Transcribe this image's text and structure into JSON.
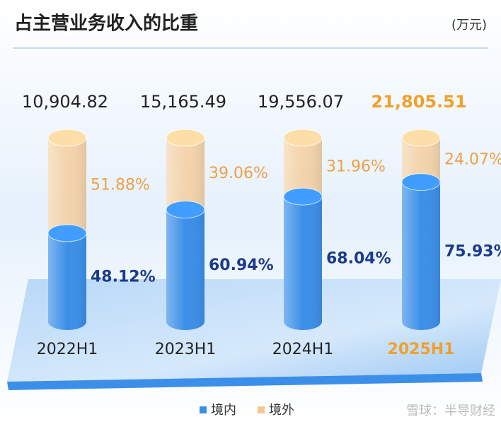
{
  "chart_data": {
    "type": "bar",
    "stacked": true,
    "title": "占主营业务收入的比重",
    "unit": "(万元)",
    "categories": [
      "2022H1",
      "2023H1",
      "2024H1",
      "2025H1"
    ],
    "totals": {
      "values": [
        10904.82,
        15165.49,
        19556.07,
        21805.51
      ],
      "value_labels": [
        "10,904.82",
        "15,165.49",
        "19,556.07",
        "21,805.51"
      ]
    },
    "highlight_index": 3,
    "highlight_color": "#f0a02c",
    "series": [
      {
        "name": "境内",
        "color": "#3b8fe8",
        "label_color": "#1c3a8c",
        "values": [
          48.12,
          60.94,
          68.04,
          75.93
        ],
        "value_labels": [
          "48.12%",
          "60.94%",
          "68.04%",
          "75.93%"
        ]
      },
      {
        "name": "境外",
        "color": "#f6c890",
        "label_color": "#eea046",
        "values": [
          51.88,
          39.06,
          31.96,
          24.07
        ],
        "value_labels": [
          "51.88%",
          "39.06%",
          "31.96%",
          "24.07%"
        ]
      }
    ],
    "watermark": "雪球：半导财经"
  }
}
